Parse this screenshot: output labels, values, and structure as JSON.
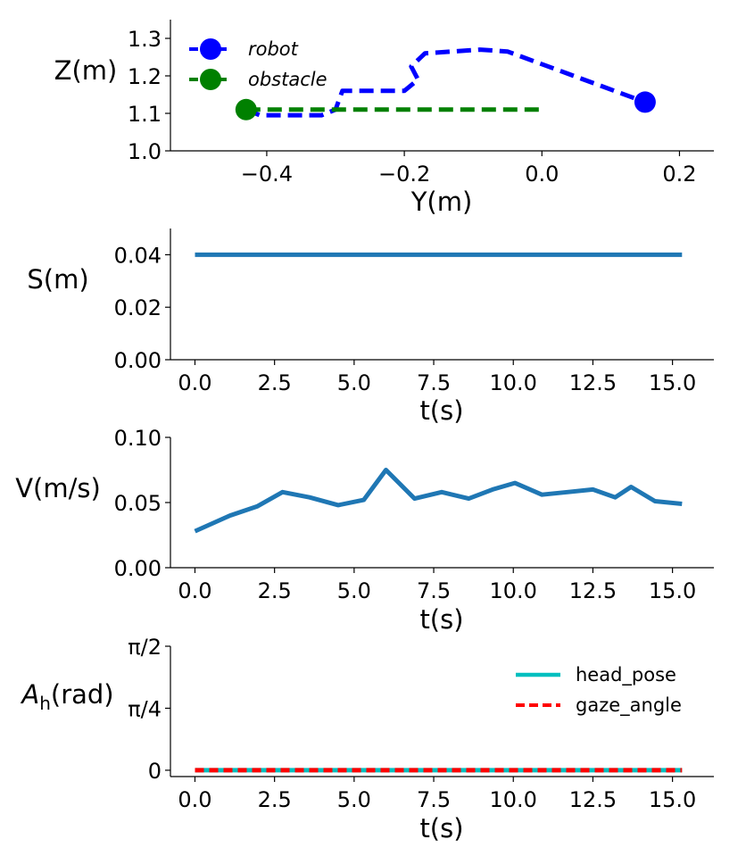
{
  "chart_data": [
    {
      "type": "line",
      "xlabel": "Y(m)",
      "ylabel": "Z(m)",
      "xlim": [
        -0.54,
        0.25
      ],
      "ylim": [
        1.0,
        1.35
      ],
      "xticks": [
        -0.4,
        -0.2,
        0.0,
        0.2
      ],
      "xtick_labels": [
        "−0.4",
        "−0.2",
        "0.0",
        "0.2"
      ],
      "yticks": [
        1.0,
        1.1,
        1.2,
        1.3
      ],
      "ytick_labels": [
        "1.0",
        "1.1",
        "1.2",
        "1.3"
      ],
      "legend_position": "top-left",
      "series": [
        {
          "name": "robot",
          "color": "#0000ff",
          "style": "dashed",
          "x": [
            -0.43,
            -0.41,
            -0.32,
            -0.3,
            -0.29,
            -0.2,
            -0.18,
            -0.19,
            -0.17,
            -0.09,
            -0.05,
            0.15
          ],
          "y": [
            1.11,
            1.095,
            1.095,
            1.11,
            1.16,
            1.16,
            1.19,
            1.225,
            1.26,
            1.27,
            1.265,
            1.13
          ],
          "marker_at_end": true
        },
        {
          "name": "obstacle",
          "color": "#008000",
          "style": "dashed",
          "x": [
            -0.43,
            0.0
          ],
          "y": [
            1.11,
            1.11
          ],
          "marker_at_start": true
        }
      ]
    },
    {
      "type": "line",
      "xlabel": "t(s)",
      "ylabel": "S(m)",
      "xlim": [
        -0.77,
        16.3
      ],
      "ylim": [
        0.0,
        0.05
      ],
      "xticks": [
        0.0,
        2.5,
        5.0,
        7.5,
        10.0,
        12.5,
        15.0
      ],
      "xtick_labels": [
        "0.0",
        "2.5",
        "5.0",
        "7.5",
        "10.0",
        "12.5",
        "15.0"
      ],
      "yticks": [
        0.0,
        0.02,
        0.04
      ],
      "ytick_labels": [
        "0.00",
        "0.02",
        "0.04"
      ],
      "series": [
        {
          "name": "S",
          "color": "#1f77b4",
          "style": "solid",
          "x": [
            0.0,
            15.3
          ],
          "y": [
            0.04,
            0.04
          ]
        }
      ]
    },
    {
      "type": "line",
      "xlabel": "t(s)",
      "ylabel": "V(m/s)",
      "xlim": [
        -0.77,
        16.3
      ],
      "ylim": [
        0.0,
        0.1
      ],
      "xticks": [
        0.0,
        2.5,
        5.0,
        7.5,
        10.0,
        12.5,
        15.0
      ],
      "xtick_labels": [
        "0.0",
        "2.5",
        "5.0",
        "7.5",
        "10.0",
        "12.5",
        "15.0"
      ],
      "yticks": [
        0.0,
        0.05,
        0.1
      ],
      "ytick_labels": [
        "0.00",
        "0.05",
        "0.10"
      ],
      "series": [
        {
          "name": "V",
          "color": "#1f77b4",
          "style": "solid",
          "x": [
            0.0,
            1.1,
            1.95,
            2.75,
            3.6,
            4.5,
            5.3,
            6.0,
            6.9,
            7.75,
            8.6,
            9.35,
            10.05,
            10.9,
            11.7,
            12.5,
            13.2,
            13.7,
            14.45,
            15.3
          ],
          "y": [
            0.028,
            0.04,
            0.047,
            0.058,
            0.054,
            0.048,
            0.052,
            0.075,
            0.053,
            0.058,
            0.053,
            0.06,
            0.065,
            0.056,
            0.058,
            0.06,
            0.054,
            0.062,
            0.051,
            0.049
          ]
        }
      ]
    },
    {
      "type": "line",
      "xlabel": "t(s)",
      "ylabel_italic": "A",
      "ylabel_sub": "h",
      "ylabel_rest": "(rad)",
      "xlim": [
        -0.77,
        16.3
      ],
      "ylim": [
        -0.08,
        1.5708
      ],
      "xticks": [
        0.0,
        2.5,
        5.0,
        7.5,
        10.0,
        12.5,
        15.0
      ],
      "xtick_labels": [
        "0.0",
        "2.5",
        "5.0",
        "7.5",
        "10.0",
        "12.5",
        "15.0"
      ],
      "yticks": [
        0.0,
        0.7854,
        1.5708
      ],
      "ytick_labels": [
        "0",
        "π/4",
        "π/2"
      ],
      "legend_position": "top-right",
      "series": [
        {
          "name": "head_pose",
          "color": "#00bfbf",
          "style": "solid",
          "x": [
            0.0,
            15.3
          ],
          "y": [
            0.0,
            0.0
          ]
        },
        {
          "name": "gaze_angle",
          "color": "#ff0000",
          "style": "dashed",
          "x": [
            0.0,
            15.3
          ],
          "y": [
            0.0,
            0.0
          ]
        }
      ]
    }
  ]
}
